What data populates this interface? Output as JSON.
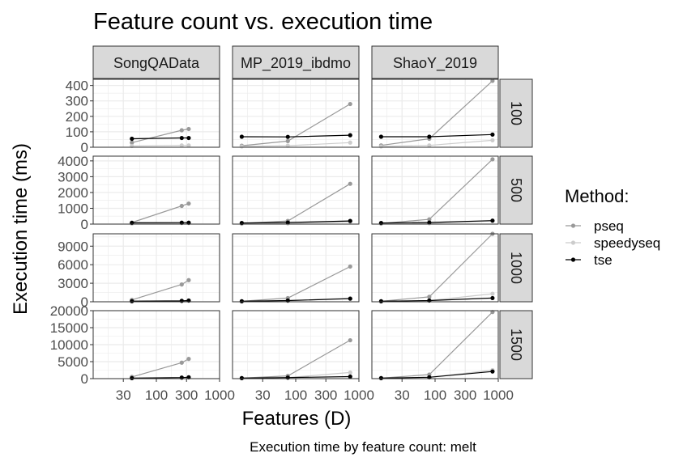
{
  "chart_data": {
    "type": "line",
    "title": "Feature count vs. execution time",
    "caption": "Execution time by feature count: melt",
    "xlabel": "Features (D)",
    "ylabel": "Execution time (ms)",
    "x_scale": "log10",
    "xlim": [
      10,
      1000
    ],
    "x_ticks": [
      30,
      100,
      300,
      1000
    ],
    "x_tick_labels": [
      "30",
      "100",
      "300",
      "1000"
    ],
    "grid": true,
    "legend_position": "right",
    "legend_title": "Method:",
    "column_strips": [
      "SongQAData",
      "MP_2019_ibdmo",
      "ShaoY_2019"
    ],
    "row_strips": [
      "100",
      "500",
      "1000",
      "1500"
    ],
    "series_styles": [
      {
        "name": "pseq",
        "color": "#999999"
      },
      {
        "name": "speedyseq",
        "color": "#cccccc"
      },
      {
        "name": "tse",
        "color": "#000000"
      }
    ],
    "rows": [
      {
        "label": "100",
        "ylim": [
          0,
          440
        ],
        "y_ticks": [
          0,
          100,
          200,
          300,
          400
        ],
        "y_tick_labels": [
          "0",
          "100",
          "200",
          "300",
          "400"
        ],
        "panels": [
          {
            "column": "SongQAData",
            "x": [
              41,
              252,
              325
            ],
            "series": [
              {
                "name": "pseq",
                "values": [
                  30,
                  110,
                  118
                ]
              },
              {
                "name": "speedyseq",
                "values": [
                  8,
                  12,
                  12
                ]
              },
              {
                "name": "tse",
                "values": [
                  55,
                  60,
                  60
                ]
              }
            ]
          },
          {
            "column": "MP_2019_ibdmo",
            "x": [
              14,
              75,
              728
            ],
            "series": [
              {
                "name": "pseq",
                "values": [
                  10,
                  40,
                  280
                ]
              },
              {
                "name": "speedyseq",
                "values": [
                  5,
                  10,
                  30
                ]
              },
              {
                "name": "tse",
                "values": [
                  68,
                  67,
                  78
                ]
              }
            ]
          },
          {
            "column": "ShaoY_2019",
            "x": [
              14,
              81,
              811
            ],
            "series": [
              {
                "name": "pseq",
                "values": [
                  12,
                  55,
                  430
                ]
              },
              {
                "name": "speedyseq",
                "values": [
                  5,
                  12,
                  45
                ]
              },
              {
                "name": "tse",
                "values": [
                  68,
                  68,
                  82
                ]
              }
            ]
          }
        ]
      },
      {
        "label": "500",
        "ylim": [
          0,
          4300
        ],
        "y_ticks": [
          0,
          1000,
          2000,
          3000,
          4000
        ],
        "y_tick_labels": [
          "0",
          "1000",
          "2000",
          "3000",
          "4000"
        ],
        "panels": [
          {
            "column": "SongQAData",
            "x": [
              41,
              252,
              325
            ],
            "series": [
              {
                "name": "pseq",
                "values": [
                  100,
                  1150,
                  1300
                ]
              },
              {
                "name": "speedyseq",
                "values": [
                  30,
                  60,
                  60
                ]
              },
              {
                "name": "tse",
                "values": [
                  80,
                  90,
                  90
                ]
              }
            ]
          },
          {
            "column": "MP_2019_ibdmo",
            "x": [
              14,
              75,
              728
            ],
            "series": [
              {
                "name": "pseq",
                "values": [
                  40,
                  200,
                  2550
                ]
              },
              {
                "name": "speedyseq",
                "values": [
                  20,
                  40,
                  150
                ]
              },
              {
                "name": "tse",
                "values": [
                  70,
                  100,
                  200
                ]
              }
            ]
          },
          {
            "column": "ShaoY_2019",
            "x": [
              14,
              81,
              811
            ],
            "series": [
              {
                "name": "pseq",
                "values": [
                  40,
                  300,
                  4100
                ]
              },
              {
                "name": "speedyseq",
                "values": [
                  20,
                  50,
                  200
                ]
              },
              {
                "name": "tse",
                "values": [
                  70,
                  100,
                  220
                ]
              }
            ]
          }
        ]
      },
      {
        "label": "1000",
        "ylim": [
          0,
          11000
        ],
        "y_ticks": [
          0,
          3000,
          6000,
          9000
        ],
        "y_tick_labels": [
          "0",
          "3000",
          "6000",
          "9000"
        ],
        "panels": [
          {
            "column": "SongQAData",
            "x": [
              41,
              252,
              325
            ],
            "series": [
              {
                "name": "pseq",
                "values": [
                  300,
                  2800,
                  3500
                ]
              },
              {
                "name": "speedyseq",
                "values": [
                  60,
                  150,
                  180
                ]
              },
              {
                "name": "tse",
                "values": [
                  100,
                  150,
                  200
                ]
              }
            ]
          },
          {
            "column": "MP_2019_ibdmo",
            "x": [
              14,
              75,
              728
            ],
            "series": [
              {
                "name": "pseq",
                "values": [
                  80,
                  600,
                  5700
                ]
              },
              {
                "name": "speedyseq",
                "values": [
                  40,
                  150,
                  600
                ]
              },
              {
                "name": "tse",
                "values": [
                  80,
                  200,
                  500
                ]
              }
            ]
          },
          {
            "column": "ShaoY_2019",
            "x": [
              14,
              81,
              811
            ],
            "series": [
              {
                "name": "pseq",
                "values": [
                  80,
                  800,
                  11000
                ]
              },
              {
                "name": "speedyseq",
                "values": [
                  40,
                  200,
                  1300
                ]
              },
              {
                "name": "tse",
                "values": [
                  80,
                  200,
                  600
                ]
              }
            ]
          }
        ]
      },
      {
        "label": "1500",
        "ylim": [
          0,
          20000
        ],
        "y_ticks": [
          0,
          5000,
          10000,
          15000,
          20000
        ],
        "y_tick_labels": [
          "0",
          "5000",
          "10000",
          "15000",
          "20000"
        ],
        "panels": [
          {
            "column": "SongQAData",
            "x": [
              41,
              252,
              325
            ],
            "series": [
              {
                "name": "pseq",
                "values": [
                  500,
                  4700,
                  5800
                ]
              },
              {
                "name": "speedyseq",
                "values": [
                  100,
                  300,
                  400
                ]
              },
              {
                "name": "tse",
                "values": [
                  150,
                  300,
                  400
                ]
              }
            ]
          },
          {
            "column": "MP_2019_ibdmo",
            "x": [
              14,
              75,
              728
            ],
            "series": [
              {
                "name": "pseq",
                "values": [
                  150,
                  800,
                  11300
                ]
              },
              {
                "name": "speedyseq",
                "values": [
                  80,
                  300,
                  1800
                ]
              },
              {
                "name": "tse",
                "values": [
                  150,
                  300,
                  600
                ]
              }
            ]
          },
          {
            "column": "ShaoY_2019",
            "x": [
              14,
              81,
              811
            ],
            "series": [
              {
                "name": "pseq",
                "values": [
                  150,
                  1200,
                  19600
                ]
              },
              {
                "name": "speedyseq",
                "values": [
                  80,
                  400,
                  2500
                ]
              },
              {
                "name": "tse",
                "values": [
                  150,
                  400,
                  2100
                ]
              }
            ]
          }
        ]
      }
    ]
  }
}
